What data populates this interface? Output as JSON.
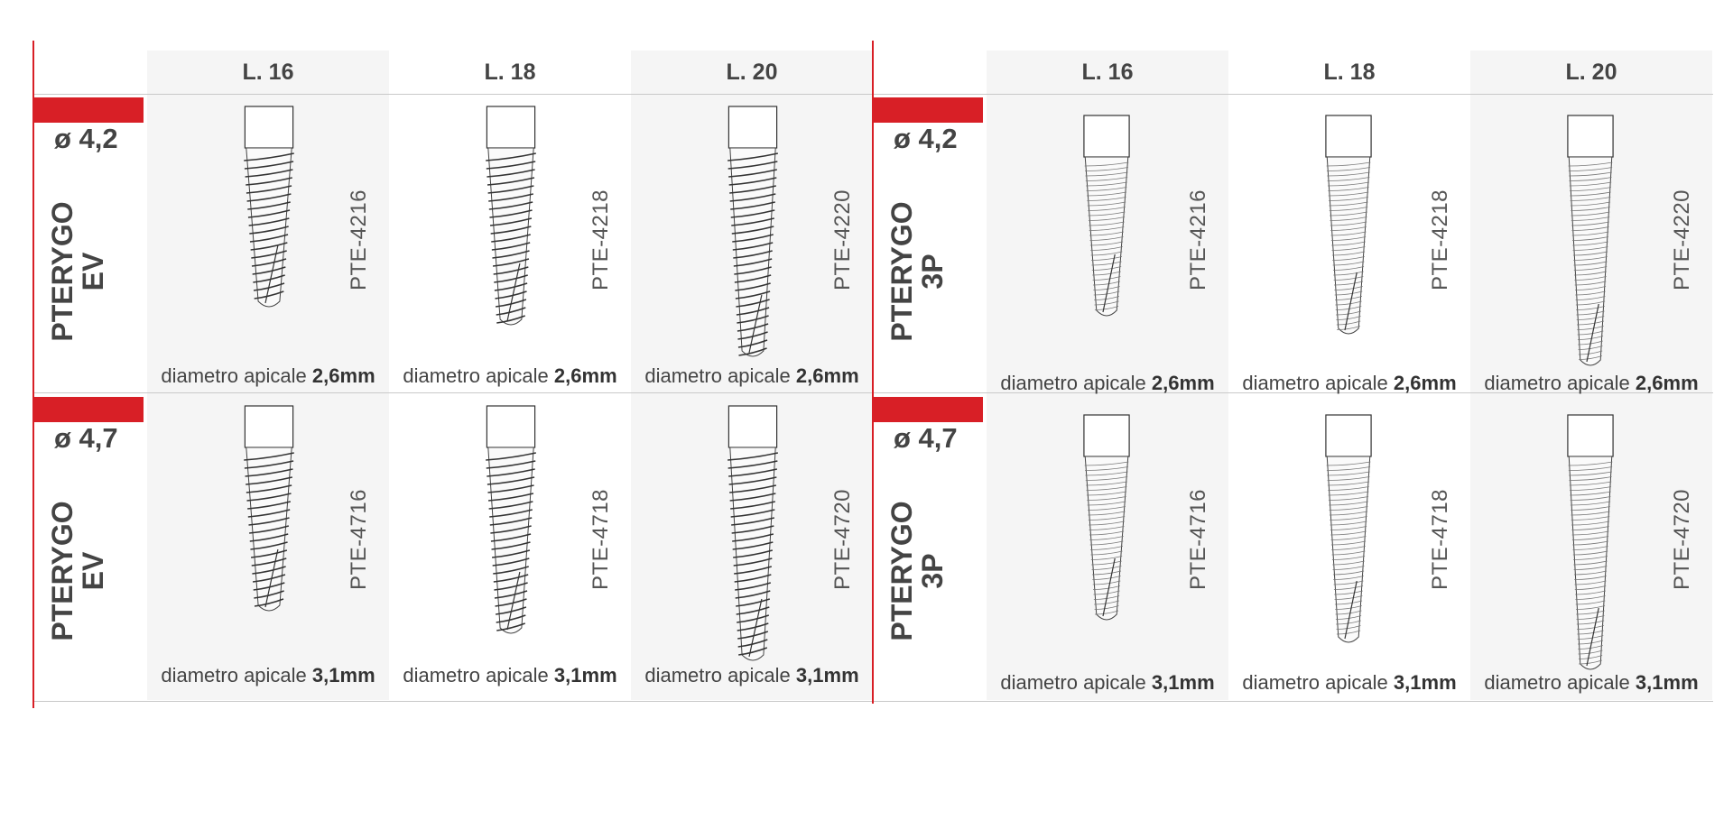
{
  "colors": {
    "accent": "#d81f26",
    "shade": "#f5f5f5",
    "rule": "#c9c9c9"
  },
  "panels": [
    {
      "id": "ev",
      "columns": [
        "L. 16",
        "L. 18",
        "L. 20"
      ],
      "rows": [
        {
          "diameter": "ø 4,2",
          "family": [
            "PTERYGO",
            "EV"
          ],
          "codes": [
            "PTE-4216",
            "PTE-4218",
            "PTE-4220"
          ],
          "apical_label": "diametro apicale",
          "apical_value": "2,6mm"
        },
        {
          "diameter": "ø 4,7",
          "family": [
            "PTERYGO",
            "EV"
          ],
          "codes": [
            "PTE-4716",
            "PTE-4718",
            "PTE-4720"
          ],
          "apical_label": "diametro apicale",
          "apical_value": "3,1mm"
        }
      ]
    },
    {
      "id": "3p",
      "columns": [
        "L. 16",
        "L. 18",
        "L. 20"
      ],
      "rows": [
        {
          "diameter": "ø 4,2",
          "family": [
            "PTERYGO",
            "3P"
          ],
          "codes": [
            "PTE-4216",
            "PTE-4218",
            "PTE-4220"
          ],
          "apical_label": "diametro apicale",
          "apical_value": "2,6mm"
        },
        {
          "diameter": "ø 4,7",
          "family": [
            "PTERYGO",
            "3P"
          ],
          "codes": [
            "PTE-4716",
            "PTE-4718",
            "PTE-4720"
          ],
          "apical_label": "diametro apicale",
          "apical_value": "3,1mm"
        }
      ]
    }
  ],
  "illustration": "dental-implant-icon"
}
